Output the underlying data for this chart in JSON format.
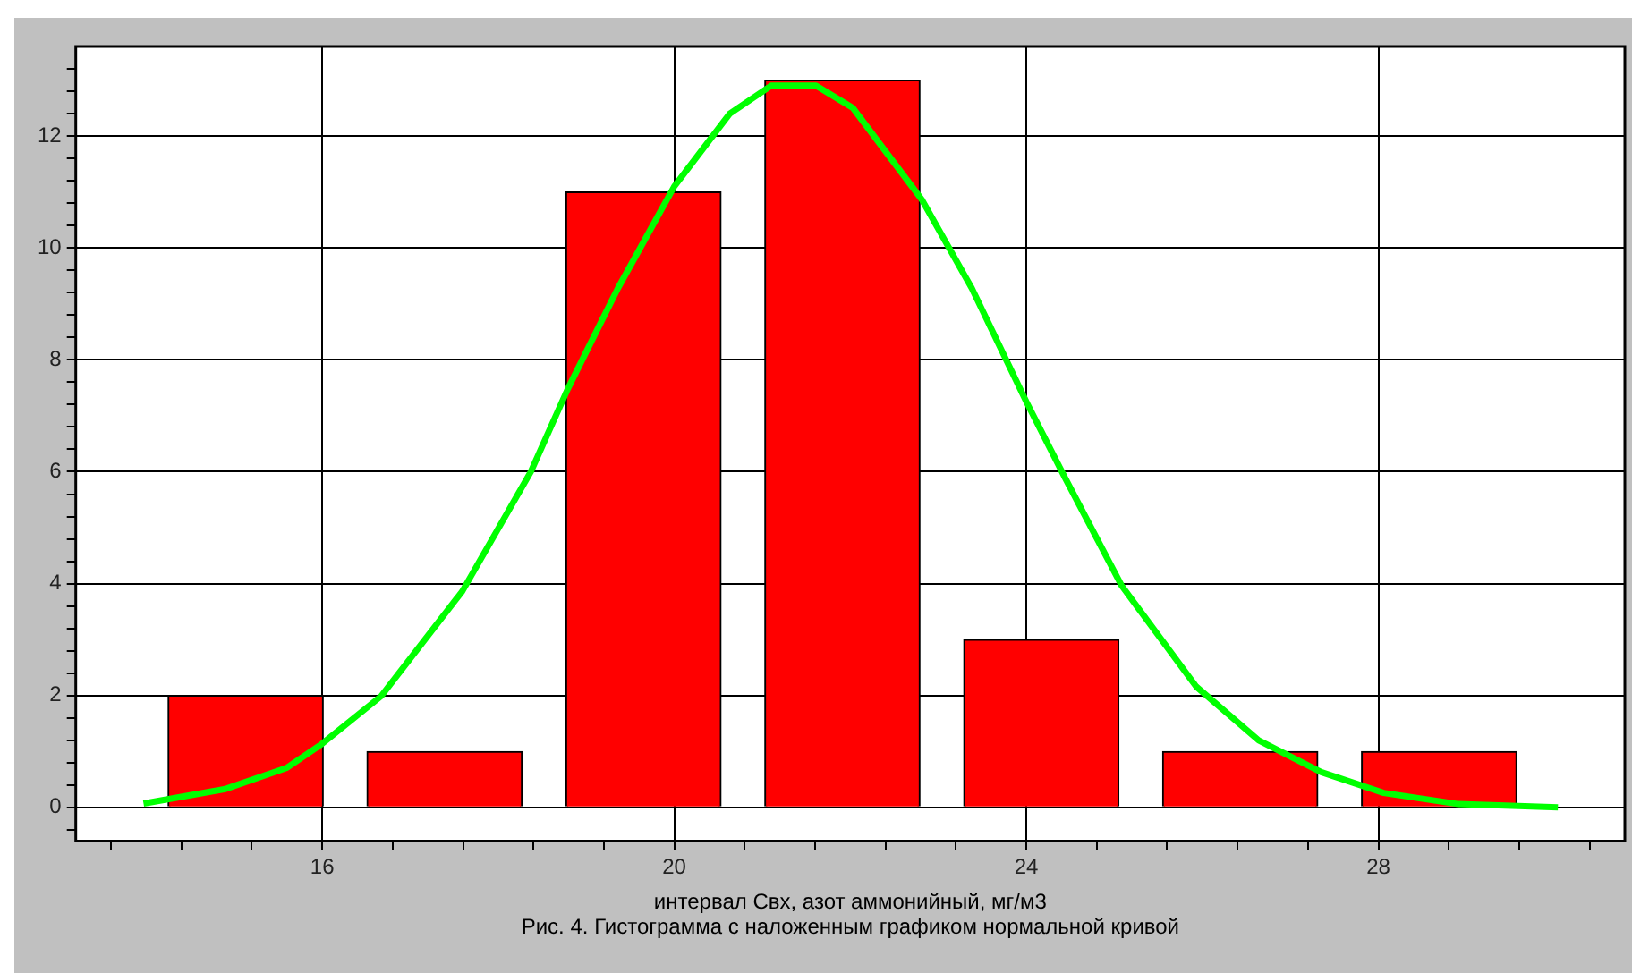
{
  "chart_data": {
    "type": "histogram",
    "xlabel": "интервал Свх, азот аммонийный, мг/м3",
    "annotations": [
      "Рис. 4. Гистограмма с наложенным графиком нормальной кривой"
    ],
    "bins": [
      14.0,
      16.26,
      18.52,
      20.78,
      23.04,
      25.3,
      27.56,
      29.82
    ],
    "values": [
      2,
      1,
      11,
      13,
      3,
      1,
      1
    ],
    "color": "#ff0000",
    "series": [
      {
        "type": "line",
        "color": "#00ff00",
        "x": [
          13.97,
          14.9,
          15.6,
          16.0,
          16.67,
          17.59,
          18.37,
          18.79,
          19.36,
          20.0,
          20.63,
          21.1,
          21.61,
          22.03,
          22.81,
          23.38,
          24.0,
          24.44,
          25.08,
          25.93,
          26.64,
          27.35,
          28.06,
          28.91,
          30.04
        ],
        "values": [
          0.07,
          0.33,
          0.71,
          1.14,
          1.99,
          3.86,
          6.0,
          7.48,
          9.28,
          11.1,
          12.4,
          12.9,
          12.9,
          12.5,
          10.87,
          9.28,
          7.25,
          5.89,
          3.97,
          2.16,
          1.2,
          0.63,
          0.26,
          0.06,
          0
        ]
      }
    ],
    "xlim": [
      13.2,
      30.8
    ],
    "xticks": [
      {
        "value": 13.6,
        "label": null
      },
      {
        "value": 14.4,
        "label": null
      },
      {
        "value": 15.2,
        "label": null
      },
      16,
      {
        "value": 16.8,
        "label": null
      },
      {
        "value": 17.6,
        "label": null
      },
      {
        "value": 18.4,
        "label": null
      },
      {
        "value": 19.2,
        "label": null
      },
      20,
      {
        "value": 20.8,
        "label": null
      },
      {
        "value": 21.6,
        "label": null
      },
      {
        "value": 22.4,
        "label": null
      },
      {
        "value": 23.2,
        "label": null
      },
      24,
      {
        "value": 24.8,
        "label": null
      },
      {
        "value": 25.6,
        "label": null
      },
      {
        "value": 26.4,
        "label": null
      },
      {
        "value": 27.2,
        "label": null
      },
      28,
      {
        "value": 28.8,
        "label": null
      },
      {
        "value": 29.6,
        "label": null
      },
      {
        "value": 30.4,
        "label": null
      }
    ],
    "ylim": [
      -0.6,
      13.6
    ],
    "yticks": [
      {
        "value": -0.4,
        "label": null
      },
      0,
      {
        "value": 0.4,
        "label": null
      },
      {
        "value": 0.8,
        "label": null
      },
      {
        "value": 1.2,
        "label": null
      },
      {
        "value": 1.6,
        "label": null
      },
      2,
      {
        "value": 2.4,
        "label": null
      },
      {
        "value": 2.8,
        "label": null
      },
      {
        "value": 3.2,
        "label": null
      },
      {
        "value": 3.6,
        "label": null
      },
      4,
      {
        "value": 4.4,
        "label": null
      },
      {
        "value": 4.8,
        "label": null
      },
      {
        "value": 5.2,
        "label": null
      },
      {
        "value": 5.6,
        "label": null
      },
      6,
      {
        "value": 6.4,
        "label": null
      },
      {
        "value": 6.8,
        "label": null
      },
      {
        "value": 7.2,
        "label": null
      },
      {
        "value": 7.6,
        "label": null
      },
      8,
      {
        "value": 8.4,
        "label": null
      },
      {
        "value": 8.8,
        "label": null
      },
      {
        "value": 9.2,
        "label": null
      },
      {
        "value": 9.6,
        "label": null
      },
      10,
      {
        "value": 10.4,
        "label": null
      },
      {
        "value": 10.8,
        "label": null
      },
      {
        "value": 11.2,
        "label": null
      },
      {
        "value": 11.6,
        "label": null
      },
      12,
      {
        "value": 12.4,
        "label": null
      },
      {
        "value": 12.8,
        "label": null
      },
      {
        "value": 13.2,
        "label": null
      }
    ],
    "grid": true,
    "legend": false,
    "marker": "none"
  }
}
